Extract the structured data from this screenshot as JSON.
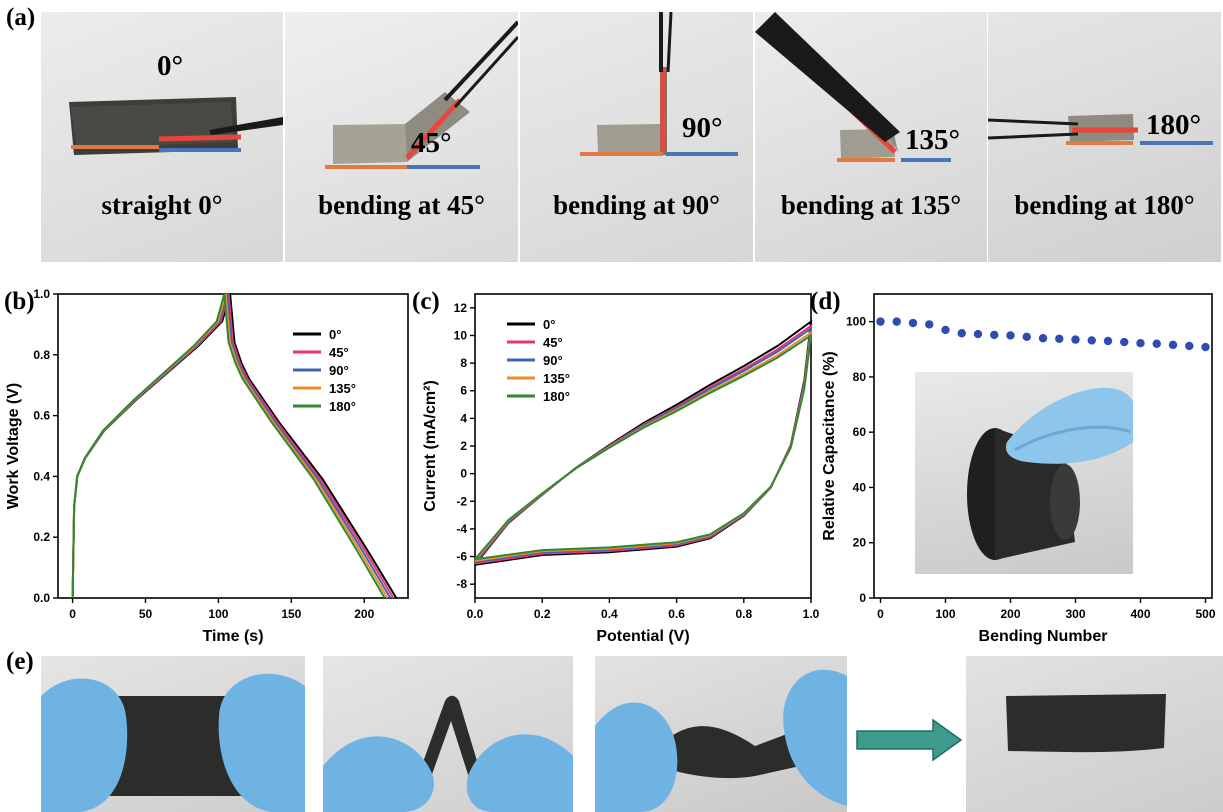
{
  "panel_a": {
    "label": "(a)",
    "photos": [
      {
        "caption": "straight 0°",
        "angle": "0°"
      },
      {
        "caption": "bending at 45°",
        "angle": "45°"
      },
      {
        "caption": "bending at 90°",
        "angle": "90°"
      },
      {
        "caption": "bending at 135°",
        "angle": "135°"
      },
      {
        "caption": "bending at 180°",
        "angle": "180°"
      }
    ]
  },
  "panel_labels": {
    "b": "(b)",
    "c": "(c)",
    "d": "(d)",
    "e": "(e)"
  },
  "colors": {
    "0°": "#000000",
    "45°": "#e8337a",
    "90°": "#3f63b0",
    "135°": "#f08a2c",
    "180°": "#2f8a2f",
    "retention": "#2f4bb0",
    "arrow": "#3e9a8c",
    "baseline_left": "#e07a40",
    "baseline_right": "#4b74b5",
    "bend_line": "#e8463a"
  },
  "chart_data": [
    {
      "id": "b",
      "type": "line",
      "xlabel": "Time (s)",
      "ylabel": "Work Voltage (V)",
      "xlim": [
        -10,
        230
      ],
      "ylim": [
        0,
        1.0
      ],
      "xticks": [
        0,
        50,
        100,
        150,
        200
      ],
      "yticks": [
        0.0,
        0.2,
        0.4,
        0.6,
        0.8,
        1.0
      ],
      "legend": "top-right",
      "series": [
        {
          "name": "0°",
          "t_max": 108,
          "t_end": 222
        },
        {
          "name": "45°",
          "t_max": 107,
          "t_end": 220
        },
        {
          "name": "90°",
          "t_max": 106,
          "t_end": 218
        },
        {
          "name": "135°",
          "t_max": 105,
          "t_end": 216
        },
        {
          "name": "180°",
          "t_max": 104,
          "t_end": 214
        }
      ],
      "shape": {
        "charge": [
          [
            0,
            0.0
          ],
          [
            1,
            0.3
          ],
          [
            3,
            0.4
          ],
          [
            8,
            0.46
          ],
          [
            20,
            0.55
          ],
          [
            40,
            0.65
          ],
          [
            60,
            0.74
          ],
          [
            80,
            0.83
          ],
          [
            95,
            0.91
          ],
          [
            100,
            1.0
          ]
        ],
        "discharge_after_drop": [
          [
            0,
            0.84
          ],
          [
            5,
            0.77
          ],
          [
            10,
            0.72
          ],
          [
            30,
            0.58
          ],
          [
            60,
            0.39
          ],
          [
            90,
            0.16
          ],
          [
            110,
            0.0
          ]
        ]
      }
    },
    {
      "id": "c",
      "type": "line",
      "xlabel": "Potential (V)",
      "ylabel": "Current (mA/cm²)",
      "xlim": [
        0.0,
        1.0
      ],
      "ylim": [
        -9,
        13
      ],
      "xticks": [
        0.0,
        0.2,
        0.4,
        0.6,
        0.8,
        1.0
      ],
      "yticks": [
        -8,
        -6,
        -4,
        -2,
        0,
        2,
        4,
        6,
        8,
        10,
        12
      ],
      "legend": "top-left",
      "series": [
        {
          "name": "0°",
          "peak": 11.0,
          "start": -6.6
        },
        {
          "name": "45°",
          "peak": 10.7,
          "start": -6.5
        },
        {
          "name": "90°",
          "peak": 10.5,
          "start": -6.4
        },
        {
          "name": "135°",
          "peak": 10.2,
          "start": -6.3
        },
        {
          "name": "180°",
          "peak": 10.0,
          "start": -6.2
        }
      ],
      "shape": {
        "upper": [
          [
            0.0,
            -6.5
          ],
          [
            0.1,
            -3.5
          ],
          [
            0.2,
            -1.5
          ],
          [
            0.3,
            0.4
          ],
          [
            0.4,
            2.0
          ],
          [
            0.5,
            3.5
          ],
          [
            0.6,
            4.8
          ],
          [
            0.7,
            6.2
          ],
          [
            0.8,
            7.5
          ],
          [
            0.9,
            8.9
          ],
          [
            1.0,
            10.6
          ]
        ],
        "lower": [
          [
            1.0,
            10.6
          ],
          [
            0.98,
            6.5
          ],
          [
            0.94,
            2.0
          ],
          [
            0.88,
            -1.0
          ],
          [
            0.8,
            -3.0
          ],
          [
            0.7,
            -4.6
          ],
          [
            0.6,
            -5.2
          ],
          [
            0.4,
            -5.6
          ],
          [
            0.2,
            -5.8
          ],
          [
            0.0,
            -6.5
          ]
        ]
      }
    },
    {
      "id": "d",
      "type": "scatter",
      "xlabel": "Bending Number",
      "ylabel": "Relative Capacitance (%)",
      "xlim": [
        -10,
        510
      ],
      "ylim": [
        0,
        110
      ],
      "xticks": [
        0,
        100,
        200,
        300,
        400,
        500
      ],
      "yticks": [
        0,
        20,
        40,
        60,
        80,
        100
      ],
      "x": [
        0,
        25,
        50,
        75,
        100,
        125,
        150,
        175,
        200,
        225,
        250,
        275,
        300,
        325,
        350,
        375,
        400,
        425,
        450,
        475,
        500
      ],
      "y": [
        100,
        100,
        99.5,
        99,
        97,
        95.8,
        95.5,
        95.2,
        95,
        94.5,
        94,
        93.8,
        93.5,
        93.2,
        93,
        92.6,
        92.2,
        92,
        91.6,
        91.2,
        90.8
      ]
    }
  ]
}
